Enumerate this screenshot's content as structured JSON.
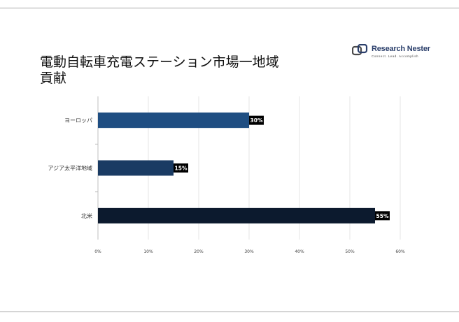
{
  "page": {
    "title": "電動自転車充電ステーション市場一地域貢献"
  },
  "logo": {
    "name": "Research Nester",
    "tagline": "Connect. Lead. Accomplish"
  },
  "colors": {
    "bar_europe": "#1f4e82",
    "bar_apac": "#1a3b63",
    "bar_na": "#0c1a2e",
    "label_bg": "#000000",
    "grid": "#e6e6e6",
    "axis": "#bfbfbf"
  },
  "chart_data": {
    "type": "bar",
    "orientation": "horizontal",
    "title": "電動自転車充電ステーション市場一地域貢献",
    "categories": [
      "ヨーロッパ",
      "アジア太平洋地域",
      "北米"
    ],
    "values": [
      30,
      15,
      55
    ],
    "data_labels": [
      "30%",
      "15%",
      "55%"
    ],
    "xlim": [
      0,
      60
    ],
    "x_ticks": [
      0,
      10,
      20,
      30,
      40,
      50,
      60
    ],
    "x_tick_labels": [
      "0%",
      "10%",
      "20%",
      "30%",
      "40%",
      "50%",
      "60%"
    ],
    "grid": true,
    "legend": "none"
  }
}
